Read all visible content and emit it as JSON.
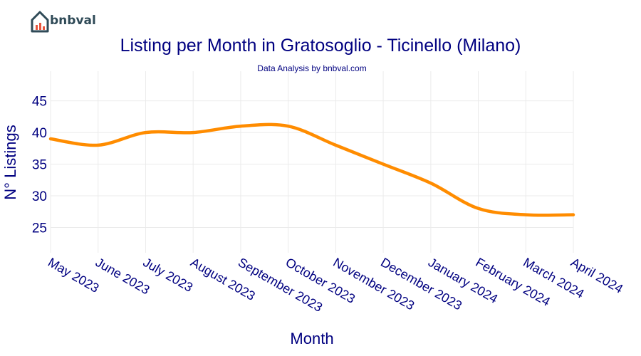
{
  "brand": {
    "name": "bnbval"
  },
  "chart_data": {
    "type": "line",
    "title": "Listing per Month in Gratosoglio - Ticinello (Milano)",
    "subtitle": "Data Analysis by bnbval.com",
    "xlabel": "Month",
    "ylabel": "N° Listings",
    "categories": [
      "May 2023",
      "June 2023",
      "July 2023",
      "August 2023",
      "September 2023",
      "October 2023",
      "November 2023",
      "December 2023",
      "January 2024",
      "February 2024",
      "March 2024",
      "April 2024"
    ],
    "series": [
      {
        "values": [
          39,
          38,
          40,
          40,
          41,
          41,
          38,
          35,
          32,
          28,
          27,
          27
        ]
      }
    ],
    "yticks": [
      25,
      30,
      35,
      40,
      45
    ],
    "ylim": [
      21,
      48
    ],
    "grid": true,
    "colors": {
      "line": "#ff8c00",
      "text": "#000080",
      "grid": "#ebebeb"
    }
  }
}
